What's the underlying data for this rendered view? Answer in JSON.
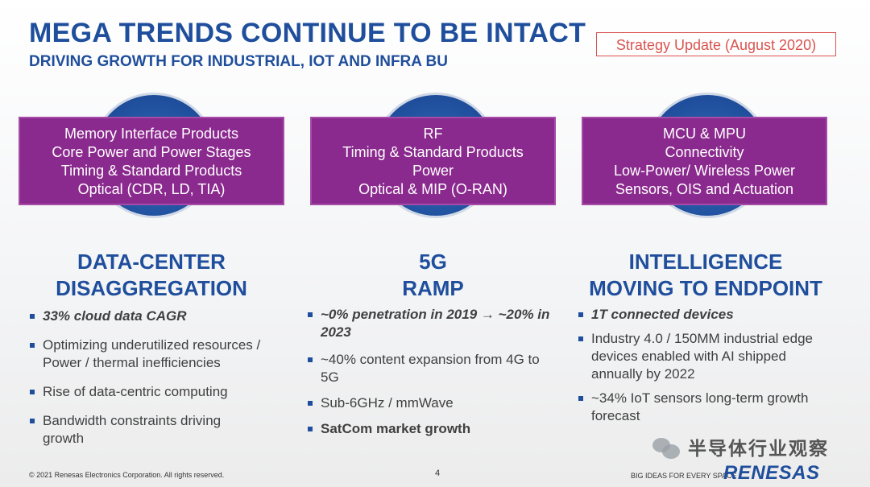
{
  "header": {
    "title": "MEGA TRENDS CONTINUE TO BE INTACT",
    "subtitle": "DRIVING GROWTH FOR INDUSTRIAL, IOT AND INFRA BU",
    "badge": "Strategy Update (August 2020)"
  },
  "columns": [
    {
      "products": [
        "Memory Interface Products",
        "Core Power and Power Stages",
        "Timing & Standard Products",
        "Optical (CDR, LD, TIA)"
      ],
      "heading": [
        "DATA-CENTER",
        "DISAGGREGATION"
      ],
      "bullets": [
        {
          "text": "33% cloud data CAGR",
          "style": "strong"
        },
        {
          "text": "Optimizing underutilized resources / Power / thermal inefficiencies",
          "style": "normal"
        },
        {
          "text": "Rise of data-centric computing",
          "style": "normal"
        },
        {
          "text": "Bandwidth constraints driving growth",
          "style": "normal"
        }
      ]
    },
    {
      "products": [
        "RF",
        "Timing & Standard Products",
        "Power",
        "Optical & MIP (O-RAN)"
      ],
      "heading": [
        "5G",
        "RAMP"
      ],
      "bullets": [
        {
          "text": "~0% penetration in 2019 → ~20% in 2023",
          "style": "strong"
        },
        {
          "text": "~40% content expansion from 4G to 5G",
          "style": "normal"
        },
        {
          "text": "Sub-6GHz / mmWave",
          "style": "normal"
        },
        {
          "text": "SatCom market growth",
          "style": "bold"
        }
      ]
    },
    {
      "products": [
        "MCU & MPU",
        "Connectivity",
        "Low-Power/ Wireless Power",
        "Sensors, OIS and Actuation"
      ],
      "heading": [
        "INTELLIGENCE",
        "MOVING TO ENDPOINT"
      ],
      "bullets": [
        {
          "text": "1T connected devices",
          "style": "strong"
        },
        {
          "text": "Industry 4.0 / 150MM industrial edge devices enabled with AI shipped annually by 2022",
          "style": "normal"
        },
        {
          "text": "~34% IoT sensors long-term growth forecast",
          "style": "normal"
        }
      ]
    }
  ],
  "footer": {
    "copyright": "© 2021 Renesas Electronics Corporation. All rights reserved.",
    "page": "4",
    "tagline": "BIG IDEAS FOR EVERY SPACE",
    "logo": "RENESAS",
    "watermark": "半导体行业观察"
  },
  "colors": {
    "brand_blue": "#1f4e9c",
    "purple": "#8b2a8e",
    "badge_red": "#d9534f"
  },
  "icons": [
    "bullet-square-icon",
    "wechat-icon"
  ]
}
